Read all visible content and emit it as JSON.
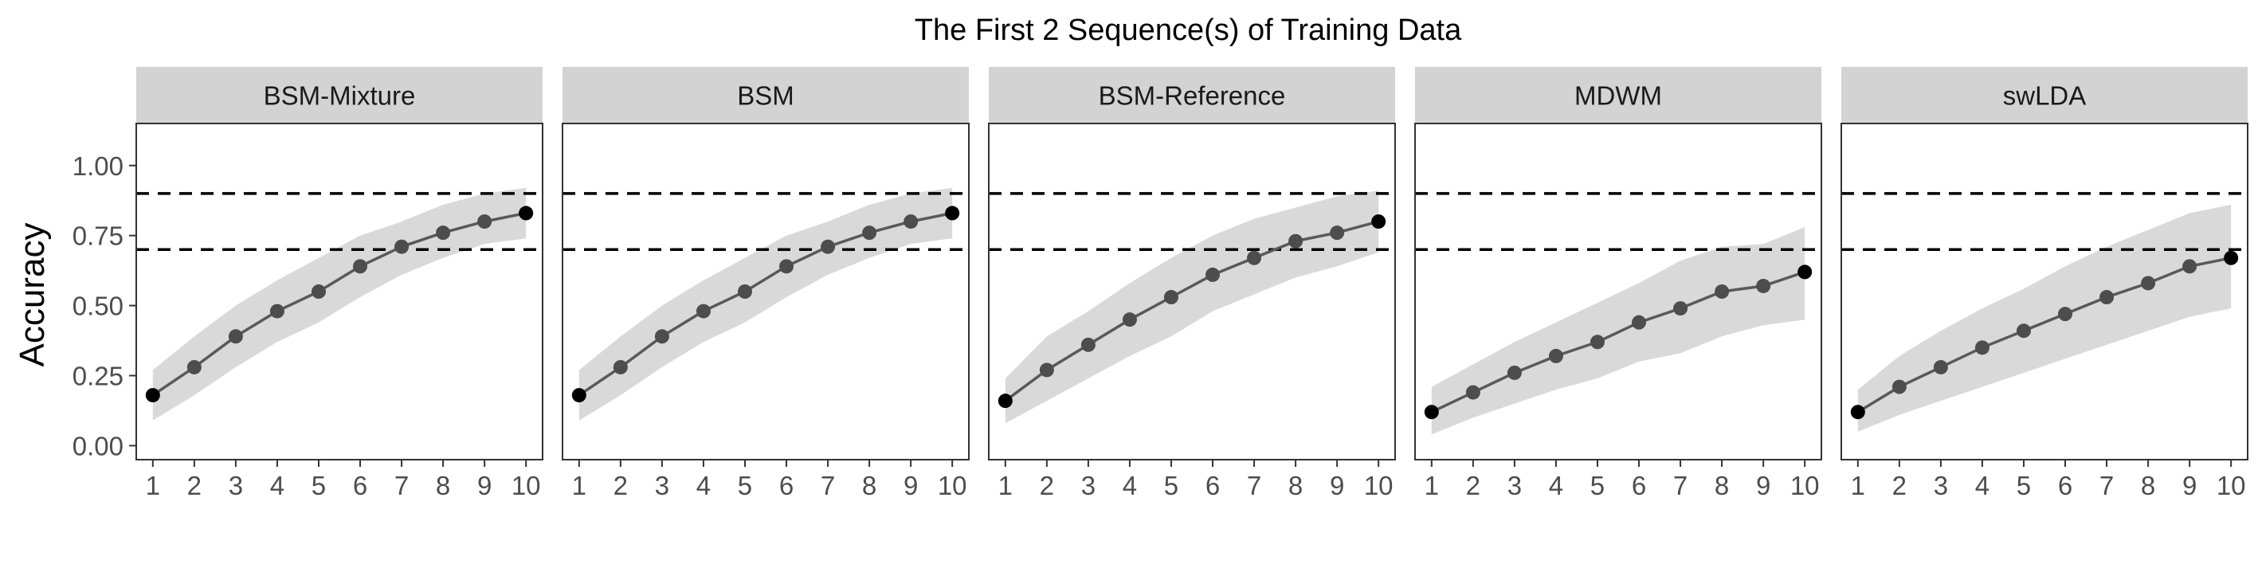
{
  "title": "The First 2 Sequence(s) of Training Data",
  "ylabel": "Accuracy",
  "chart_data": {
    "type": "line",
    "title": "The First 2 Sequence(s) of Training Data",
    "xlabel": "",
    "ylabel": "Accuracy",
    "x": [
      1,
      2,
      3,
      4,
      5,
      6,
      7,
      8,
      9,
      10
    ],
    "xlim": [
      0.6,
      10.4
    ],
    "ylim": [
      -0.05,
      1.15
    ],
    "yticks": [
      0.0,
      0.25,
      0.5,
      0.75,
      1.0
    ],
    "ytick_labels": [
      "0.00",
      "0.25",
      "0.50",
      "0.75",
      "1.00"
    ],
    "reference_lines": [
      0.7,
      0.9
    ],
    "grid": false,
    "colors": {
      "line": "#595959",
      "point": "#4d4d4d",
      "endpoint": "#000000",
      "band": "#d9d9d9",
      "strip": "#d3d3d3",
      "reference_line": "#000000"
    },
    "panels": [
      {
        "name": "BSM-Mixture",
        "values": [
          0.18,
          0.28,
          0.39,
          0.48,
          0.55,
          0.64,
          0.71,
          0.76,
          0.8,
          0.83
        ],
        "lower": [
          0.09,
          0.18,
          0.28,
          0.37,
          0.44,
          0.53,
          0.61,
          0.67,
          0.72,
          0.74
        ],
        "upper": [
          0.27,
          0.39,
          0.5,
          0.59,
          0.67,
          0.75,
          0.8,
          0.86,
          0.9,
          0.92
        ]
      },
      {
        "name": "BSM",
        "values": [
          0.18,
          0.28,
          0.39,
          0.48,
          0.55,
          0.64,
          0.71,
          0.76,
          0.8,
          0.83
        ],
        "lower": [
          0.09,
          0.18,
          0.28,
          0.37,
          0.44,
          0.53,
          0.61,
          0.67,
          0.72,
          0.74
        ],
        "upper": [
          0.27,
          0.39,
          0.5,
          0.59,
          0.67,
          0.75,
          0.8,
          0.86,
          0.9,
          0.92
        ]
      },
      {
        "name": "BSM-Reference",
        "values": [
          0.16,
          0.27,
          0.36,
          0.45,
          0.53,
          0.61,
          0.67,
          0.73,
          0.76,
          0.8
        ],
        "lower": [
          0.08,
          0.16,
          0.24,
          0.32,
          0.39,
          0.48,
          0.54,
          0.6,
          0.64,
          0.69
        ],
        "upper": [
          0.24,
          0.39,
          0.48,
          0.58,
          0.67,
          0.75,
          0.81,
          0.85,
          0.89,
          0.91
        ]
      },
      {
        "name": "MDWM",
        "values": [
          0.12,
          0.19,
          0.26,
          0.32,
          0.37,
          0.44,
          0.49,
          0.55,
          0.57,
          0.62
        ],
        "lower": [
          0.04,
          0.1,
          0.15,
          0.2,
          0.24,
          0.3,
          0.33,
          0.39,
          0.43,
          0.45
        ],
        "upper": [
          0.21,
          0.29,
          0.37,
          0.44,
          0.51,
          0.58,
          0.66,
          0.71,
          0.72,
          0.78
        ]
      },
      {
        "name": "swLDA",
        "values": [
          0.12,
          0.21,
          0.28,
          0.35,
          0.41,
          0.47,
          0.53,
          0.58,
          0.64,
          0.67
        ],
        "lower": [
          0.05,
          0.11,
          0.16,
          0.21,
          0.26,
          0.31,
          0.36,
          0.41,
          0.46,
          0.49
        ],
        "upper": [
          0.2,
          0.32,
          0.41,
          0.49,
          0.56,
          0.64,
          0.71,
          0.77,
          0.83,
          0.86
        ]
      }
    ]
  }
}
